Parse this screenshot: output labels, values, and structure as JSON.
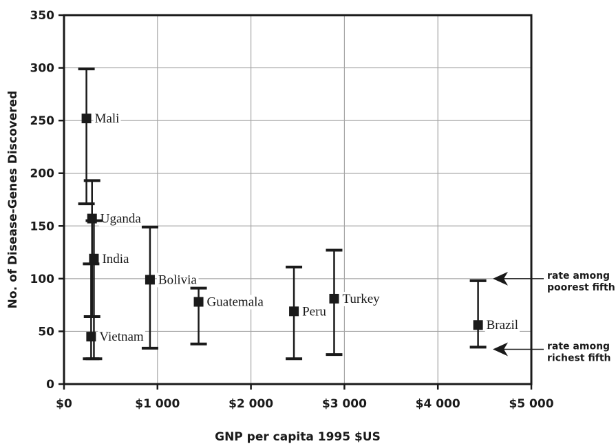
{
  "chart_data": {
    "type": "scatter",
    "xlabel": "GNP per capita 1995 $US",
    "ylabel": "No. of Disease-Genes Discovered",
    "xlim": [
      0,
      5000
    ],
    "ylim": [
      0,
      350
    ],
    "x_ticks": [
      0,
      1000,
      2000,
      3000,
      4000,
      5000
    ],
    "x_tick_labels": [
      "$0",
      "$1 000",
      "$2 000",
      "$3 000",
      "$4 000",
      "$5 000"
    ],
    "y_ticks": [
      0,
      50,
      100,
      150,
      200,
      250,
      300,
      350
    ],
    "y_tick_labels": [
      "0",
      "50",
      "100",
      "150",
      "200",
      "250",
      "300",
      "350"
    ],
    "grid": true,
    "error_bar_meaning": {
      "top": "rate among poorest fifth",
      "bottom": "rate among richest fifth"
    },
    "points": [
      {
        "label": "Mali",
        "x": 240,
        "y": 252,
        "high": 299,
        "low": 171
      },
      {
        "label": "Uganda",
        "x": 300,
        "y": 157,
        "high": 193,
        "low": 64
      },
      {
        "label": "India",
        "x": 320,
        "y": 119,
        "high": 155,
        "low": 24
      },
      {
        "label": "Vietnam",
        "x": 290,
        "y": 45,
        "high": 114,
        "low": 24
      },
      {
        "label": "Bolivia",
        "x": 920,
        "y": 99,
        "high": 149,
        "low": 34
      },
      {
        "label": "Guatemala",
        "x": 1440,
        "y": 78,
        "high": 91,
        "low": 38
      },
      {
        "label": "Peru",
        "x": 2460,
        "y": 69,
        "high": 111,
        "low": 24
      },
      {
        "label": "Turkey",
        "x": 2890,
        "y": 81,
        "high": 127,
        "low": 28
      },
      {
        "label": "Brazil",
        "x": 4430,
        "y": 56,
        "high": 98,
        "low": 35
      }
    ],
    "annotations": [
      {
        "text_lines": [
          "rate among",
          "poorest fifth"
        ],
        "points_to": 100
      },
      {
        "text_lines": [
          "rate among",
          "richest fifth"
        ],
        "points_to": 33
      }
    ]
  }
}
